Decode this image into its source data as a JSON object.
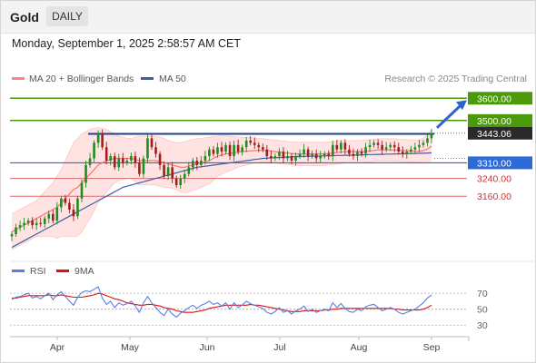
{
  "header": {
    "title": "Gold",
    "timeframe": "DAILY",
    "datetime": "Monday, September 1, 2025 2:58:57 AM CET"
  },
  "chart_data": [
    {
      "type": "candlestick",
      "title": "Gold",
      "legend": [
        {
          "label": "MA 20 + Bollinger Bands",
          "color": "#ff8080"
        },
        {
          "label": "MA 50",
          "color": "#3a5fa8"
        }
      ],
      "watermark": "Research © 2025 Trading Central",
      "ylim": [
        2900,
        3650
      ],
      "x_ticks": [
        "Apr",
        "May",
        "Jun",
        "Jul",
        "Aug",
        "Sep"
      ],
      "levels": [
        {
          "label": "3600.00",
          "value": 3600,
          "kind": "target"
        },
        {
          "label": "3500.00",
          "value": 3500,
          "kind": "target"
        },
        {
          "label": "3443.06",
          "value": 3443.06,
          "kind": "last"
        },
        {
          "label": "3310.00",
          "value": 3310,
          "kind": "pivot"
        },
        {
          "label": "3240.00",
          "value": 3240,
          "kind": "support"
        },
        {
          "label": "3160.00",
          "value": 3160,
          "kind": "support"
        }
      ],
      "resistance_line": 3440,
      "arrow": {
        "from": 3443,
        "to": 3600,
        "direction": "up"
      },
      "colors": {
        "up": "#1e8c1e",
        "down": "#a31c1c",
        "target": "#4a9a0a",
        "pivot": "#2e6ad6",
        "support": "#e06868"
      },
      "close": [
        2990,
        3020,
        3030,
        3040,
        3050,
        3030,
        3040,
        3035,
        3060,
        3080,
        3050,
        3110,
        3150,
        3130,
        3100,
        3070,
        3150,
        3220,
        3300,
        3330,
        3400,
        3440,
        3380,
        3320,
        3340,
        3290,
        3330,
        3310,
        3320,
        3340,
        3310,
        3260,
        3330,
        3420,
        3380,
        3350,
        3300,
        3250,
        3290,
        3240,
        3210,
        3240,
        3260,
        3290,
        3320,
        3300,
        3320,
        3340,
        3370,
        3350,
        3380,
        3360,
        3390,
        3340,
        3390,
        3360,
        3380,
        3410,
        3400,
        3390,
        3380,
        3370,
        3340,
        3330,
        3340,
        3360,
        3330,
        3340,
        3320,
        3340,
        3350,
        3370,
        3340,
        3350,
        3330,
        3340,
        3350,
        3340,
        3390,
        3370,
        3400,
        3370,
        3350,
        3340,
        3360,
        3350,
        3380,
        3390,
        3400,
        3390,
        3370,
        3380,
        3390,
        3380,
        3360,
        3350,
        3360,
        3370,
        3380,
        3390,
        3400,
        3420,
        3443.06
      ],
      "ma20": [
        3000,
        3010,
        3020,
        3030,
        3040,
        3050,
        3060,
        3070,
        3080,
        3090,
        3100,
        3110,
        3130,
        3150,
        3170,
        3190,
        3200,
        3220,
        3240,
        3260,
        3280,
        3300,
        3310,
        3320,
        3325,
        3330,
        3330,
        3330,
        3330,
        3330,
        3325,
        3320,
        3320,
        3320,
        3320,
        3320,
        3315,
        3310,
        3305,
        3300,
        3295,
        3290,
        3290,
        3295,
        3300,
        3305,
        3310,
        3315,
        3320,
        3330,
        3340,
        3345,
        3350,
        3352,
        3355,
        3358,
        3360,
        3362,
        3364,
        3365,
        3366,
        3366,
        3365,
        3363,
        3360,
        3358,
        3356,
        3354,
        3352,
        3350,
        3350,
        3350,
        3350,
        3350,
        3350,
        3350,
        3350,
        3352,
        3354,
        3356,
        3358,
        3360,
        3360,
        3360,
        3360,
        3360,
        3362,
        3364,
        3366,
        3368,
        3368,
        3368,
        3368,
        3368,
        3366,
        3365,
        3364,
        3363,
        3362,
        3362,
        3365,
        3372,
        3385
      ],
      "bb_upper": [
        3080,
        3090,
        3100,
        3110,
        3120,
        3130,
        3140,
        3160,
        3180,
        3200,
        3220,
        3250,
        3280,
        3320,
        3360,
        3400,
        3420,
        3440,
        3450,
        3460,
        3465,
        3468,
        3465,
        3460,
        3450,
        3440,
        3430,
        3425,
        3420,
        3420,
        3425,
        3430,
        3430,
        3430,
        3430,
        3430,
        3425,
        3420,
        3410,
        3405,
        3400,
        3400,
        3405,
        3410,
        3415,
        3418,
        3420,
        3422,
        3425,
        3428,
        3430,
        3432,
        3432,
        3430,
        3428,
        3426,
        3425,
        3424,
        3423,
        3422,
        3420,
        3418,
        3416,
        3414,
        3412,
        3410,
        3408,
        3406,
        3404,
        3402,
        3402,
        3402,
        3402,
        3402,
        3402,
        3402,
        3402,
        3404,
        3406,
        3408,
        3410,
        3410,
        3410,
        3410,
        3410,
        3410,
        3412,
        3414,
        3416,
        3418,
        3418,
        3418,
        3418,
        3418,
        3416,
        3415,
        3414,
        3413,
        3412,
        3412,
        3420,
        3435,
        3460
      ],
      "bb_lower": [
        2920,
        2930,
        2940,
        2950,
        2960,
        2970,
        2980,
        2980,
        2980,
        2980,
        2980,
        2970,
        2980,
        2980,
        2980,
        2980,
        2980,
        3000,
        3030,
        3060,
        3095,
        3132,
        3155,
        3180,
        3200,
        3220,
        3230,
        3235,
        3240,
        3240,
        3225,
        3210,
        3210,
        3210,
        3210,
        3210,
        3205,
        3200,
        3200,
        3195,
        3190,
        3180,
        3175,
        3180,
        3185,
        3192,
        3200,
        3208,
        3215,
        3232,
        3250,
        3258,
        3268,
        3274,
        3282,
        3290,
        3295,
        3300,
        3305,
        3308,
        3312,
        3314,
        3314,
        3312,
        3308,
        3306,
        3304,
        3302,
        3300,
        3298,
        3298,
        3298,
        3298,
        3298,
        3298,
        3298,
        3298,
        3300,
        3302,
        3304,
        3306,
        3310,
        3310,
        3310,
        3310,
        3310,
        3312,
        3314,
        3316,
        3318,
        3318,
        3318,
        3318,
        3318,
        3316,
        3315,
        3314,
        3313,
        3312,
        3312,
        3310,
        3309,
        3310
      ],
      "ma50": [
        2930,
        2940,
        2950,
        2960,
        2970,
        2980,
        2990,
        3000,
        3010,
        3020,
        3030,
        3040,
        3050,
        3060,
        3070,
        3080,
        3090,
        3100,
        3110,
        3120,
        3130,
        3140,
        3150,
        3160,
        3170,
        3180,
        3190,
        3200,
        3205,
        3210,
        3215,
        3220,
        3225,
        3230,
        3235,
        3240,
        3245,
        3250,
        3255,
        3260,
        3265,
        3270,
        3275,
        3280,
        3285,
        3290,
        3292,
        3295,
        3297,
        3300,
        3302,
        3305,
        3307,
        3310,
        3312,
        3315,
        3317,
        3320,
        3322,
        3325,
        3327,
        3330,
        3331,
        3332,
        3333,
        3334,
        3335,
        3336,
        3337,
        3338,
        3338,
        3339,
        3339,
        3340,
        3340,
        3341,
        3341,
        3342,
        3342,
        3343,
        3343,
        3344,
        3344,
        3345,
        3345,
        3346,
        3346,
        3347,
        3347,
        3348,
        3348,
        3349,
        3349,
        3350,
        3350,
        3351,
        3351,
        3352,
        3352,
        3353,
        3353,
        3354,
        3355
      ]
    },
    {
      "type": "line",
      "title": "RSI",
      "legend": [
        {
          "label": "RSI",
          "color": "#5b7fe0"
        },
        {
          "label": "9MA",
          "color": "#e01010"
        }
      ],
      "y_ticks": [
        "70",
        "50",
        "30"
      ],
      "ylim": [
        20,
        85
      ],
      "rsi": [
        62,
        65,
        66,
        68,
        70,
        64,
        66,
        63,
        67,
        70,
        62,
        68,
        72,
        66,
        60,
        55,
        65,
        71,
        73,
        72,
        75,
        78,
        64,
        56,
        60,
        52,
        58,
        55,
        57,
        60,
        54,
        46,
        58,
        66,
        58,
        52,
        46,
        42,
        50,
        44,
        40,
        45,
        48,
        52,
        55,
        51,
        55,
        57,
        60,
        56,
        58,
        54,
        58,
        50,
        58,
        52,
        55,
        60,
        57,
        55,
        53,
        51,
        46,
        44,
        47,
        52,
        46,
        48,
        44,
        48,
        50,
        54,
        47,
        50,
        46,
        48,
        50,
        48,
        58,
        52,
        57,
        51,
        47,
        46,
        50,
        48,
        53,
        55,
        56,
        52,
        48,
        50,
        52,
        50,
        46,
        44,
        46,
        48,
        50,
        54,
        58,
        64,
        68
      ],
      "ma9": [
        64,
        64,
        65,
        66,
        67,
        67,
        67,
        67,
        67,
        68,
        67,
        67,
        68,
        67,
        66,
        65,
        65,
        65,
        66,
        67,
        68,
        70,
        69,
        67,
        65,
        63,
        62,
        60,
        58,
        57,
        56,
        55,
        55,
        56,
        56,
        55,
        54,
        52,
        51,
        50,
        48,
        47,
        46,
        46,
        46,
        47,
        48,
        49,
        51,
        52,
        53,
        54,
        55,
        55,
        55,
        55,
        55,
        55,
        56,
        55,
        55,
        54,
        53,
        52,
        51,
        50,
        49,
        48,
        47,
        47,
        47,
        48,
        48,
        48,
        48,
        48,
        49,
        49,
        50,
        50,
        51,
        51,
        51,
        51,
        51,
        51,
        51,
        51,
        51,
        51,
        51,
        51,
        51,
        50,
        50,
        49,
        49,
        49,
        49,
        49,
        50,
        52,
        55
      ]
    }
  ]
}
